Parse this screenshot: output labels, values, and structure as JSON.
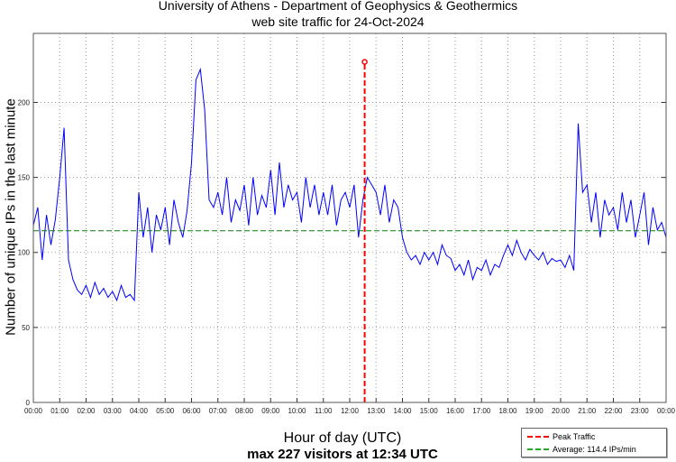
{
  "chart_data": {
    "type": "line",
    "title": "University of Athens - Department of Geophysics & Geothermics",
    "subtitle": "web site traffic for 24-Oct-2024",
    "xlabel": "Hour of day (UTC)",
    "ylabel": "Number of unique IPs in the last minute",
    "caption": "max 227 visitors at 12:34 UTC",
    "xlim": [
      0,
      24
    ],
    "ylim": [
      0,
      246
    ],
    "x_ticks": [
      "00:00",
      "01:00",
      "02:00",
      "03:00",
      "04:00",
      "05:00",
      "06:00",
      "07:00",
      "08:00",
      "09:00",
      "10:00",
      "11:00",
      "12:00",
      "13:00",
      "14:00",
      "15:00",
      "16:00",
      "17:00",
      "18:00",
      "19:00",
      "20:00",
      "21:00",
      "22:00",
      "23:00",
      "00:00"
    ],
    "y_ticks": [
      0,
      50,
      100,
      150,
      200
    ],
    "grid": true,
    "x_step_hours": 0.16667,
    "series": [
      {
        "name": "Traffic",
        "color": "#0000ff",
        "values": [
          118,
          130,
          95,
          125,
          105,
          122,
          150,
          183,
          95,
          82,
          75,
          72,
          78,
          70,
          80,
          72,
          76,
          70,
          74,
          68,
          78,
          70,
          72,
          68,
          140,
          110,
          130,
          100,
          125,
          115,
          130,
          105,
          135,
          120,
          110,
          128,
          160,
          215,
          222,
          195,
          135,
          130,
          140,
          125,
          150,
          120,
          135,
          128,
          145,
          118,
          150,
          125,
          138,
          130,
          155,
          125,
          160,
          130,
          145,
          135,
          140,
          120,
          150,
          130,
          145,
          125,
          140,
          125,
          145,
          118,
          135,
          140,
          130,
          145,
          110,
          135,
          150,
          145,
          140,
          125,
          145,
          120,
          135,
          130,
          110,
          100,
          95,
          98,
          92,
          100,
          95,
          100,
          92,
          105,
          98,
          96,
          88,
          92,
          85,
          95,
          82,
          90,
          88,
          95,
          85,
          92,
          90,
          98,
          105,
          98,
          108,
          100,
          95,
          102,
          98,
          95,
          100,
          92,
          96,
          94,
          95,
          90,
          98,
          88,
          186,
          140,
          145,
          120,
          140,
          110,
          135,
          125,
          130,
          115,
          140,
          120,
          135,
          110,
          125,
          140,
          105,
          130,
          115,
          120,
          110
        ]
      }
    ],
    "peak": {
      "hour": 12.567,
      "value": 227,
      "color": "#ff0000"
    },
    "average": {
      "value": 114.4,
      "color": "#008000"
    },
    "legend": {
      "position": "bottom-right",
      "entries": [
        "Peak Traffic",
        "Average: 114.4 IPs/min"
      ]
    }
  }
}
